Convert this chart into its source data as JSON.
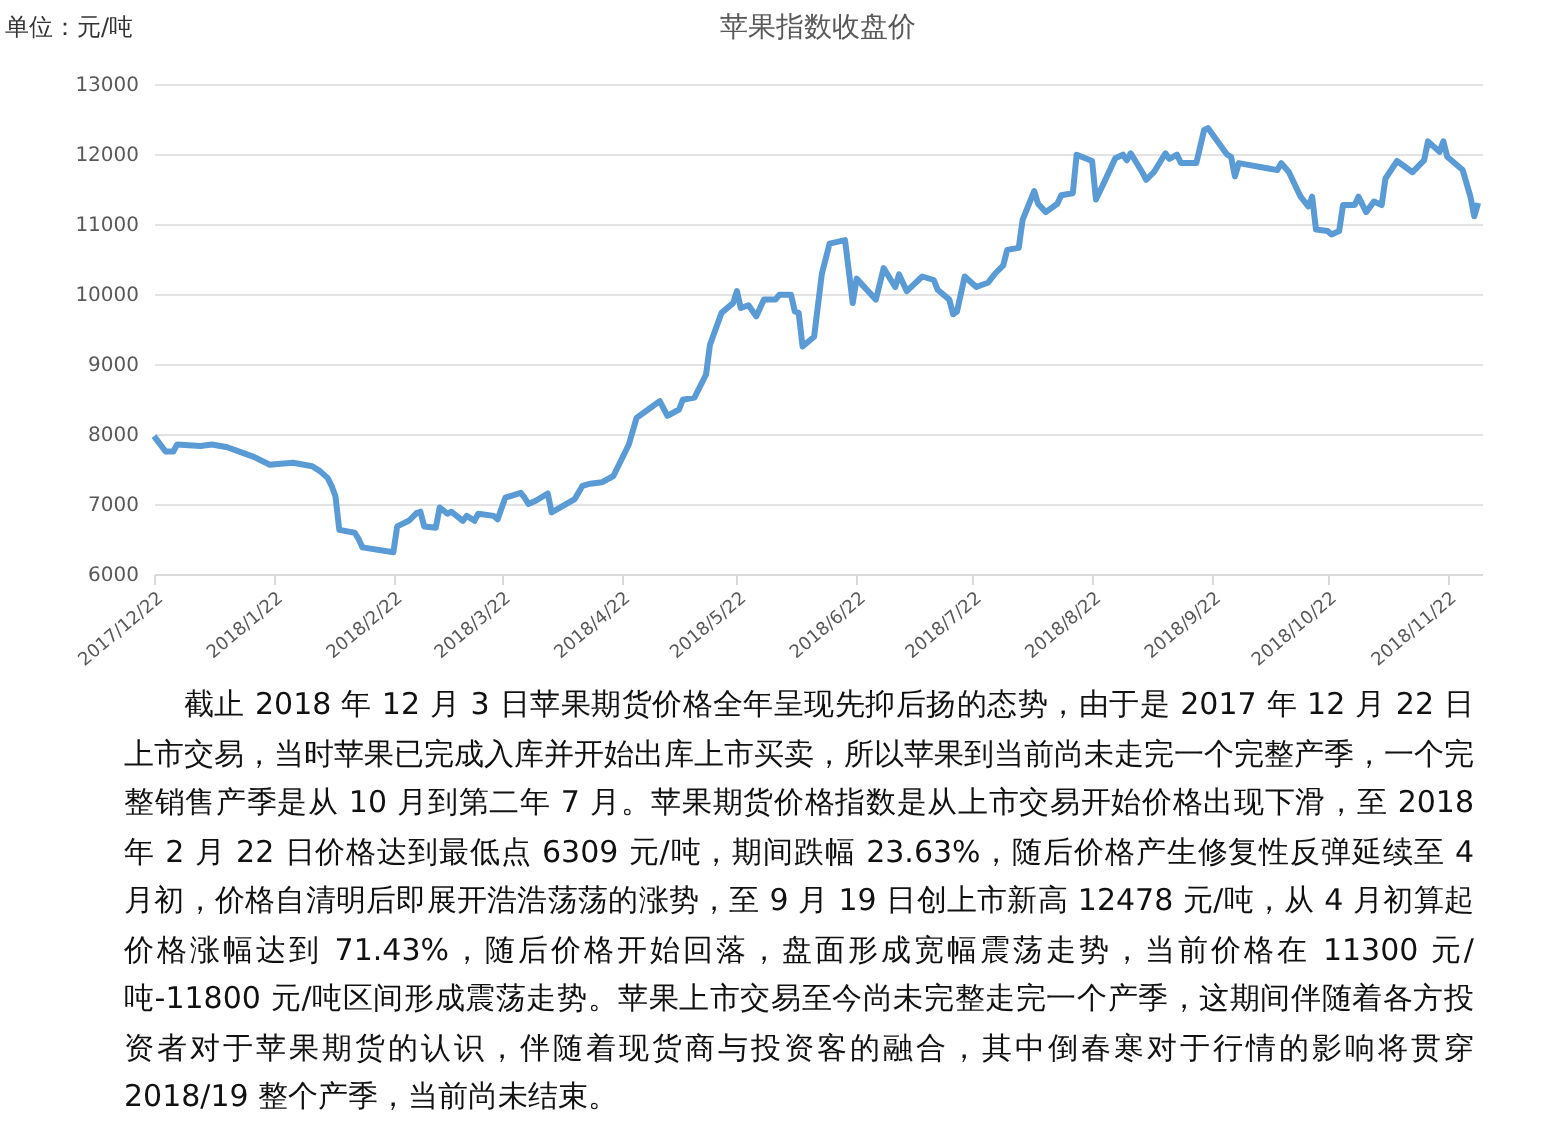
{
  "chart_data": {
    "type": "line",
    "title": "苹果指数收盘价",
    "ylabel": "单位：元/吨",
    "x": [
      "2017-12-22",
      "2017-12-25",
      "2017-12-27",
      "2017-12-28",
      "2018-01-03",
      "2018-01-06",
      "2018-01-10",
      "2018-01-14",
      "2018-01-17",
      "2018-01-21",
      "2018-01-23",
      "2018-01-27",
      "2018-02-01",
      "2018-02-03",
      "2018-02-05",
      "2018-02-06",
      "2018-02-07",
      "2018-02-08",
      "2018-02-12",
      "2018-02-13",
      "2018-02-14",
      "2018-02-22",
      "2018-02-23",
      "2018-02-26",
      "2018-02-28",
      "2018-03-01",
      "2018-03-02",
      "2018-03-05",
      "2018-03-06",
      "2018-03-08",
      "2018-03-09",
      "2018-03-12",
      "2018-03-13",
      "2018-03-15",
      "2018-03-16",
      "2018-03-20",
      "2018-03-21",
      "2018-03-23",
      "2018-03-27",
      "2018-03-28",
      "2018-03-29",
      "2018-03-31",
      "2018-04-03",
      "2018-04-04",
      "2018-04-10",
      "2018-04-12",
      "2018-04-14",
      "2018-04-17",
      "2018-04-20",
      "2018-04-24",
      "2018-04-26",
      "2018-04-29",
      "2018-05-02",
      "2018-05-04",
      "2018-05-07",
      "2018-05-08",
      "2018-05-11",
      "2018-05-14",
      "2018-05-15",
      "2018-05-18",
      "2018-05-21",
      "2018-05-22",
      "2018-05-23",
      "2018-05-25",
      "2018-05-27",
      "2018-05-29",
      "2018-06-01",
      "2018-06-02",
      "2018-06-05",
      "2018-06-06",
      "2018-06-07",
      "2018-06-08",
      "2018-06-11",
      "2018-06-13",
      "2018-06-15",
      "2018-06-19",
      "2018-06-21",
      "2018-06-22",
      "2018-06-27",
      "2018-06-29",
      "2018-07-02",
      "2018-07-03",
      "2018-07-05",
      "2018-07-09",
      "2018-07-12",
      "2018-07-13",
      "2018-07-16",
      "2018-07-17",
      "2018-07-18",
      "2018-07-20",
      "2018-07-23",
      "2018-07-26",
      "2018-07-28",
      "2018-07-30",
      "2018-07-31",
      "2018-08-03",
      "2018-08-04",
      "2018-08-07",
      "2018-08-08",
      "2018-08-10",
      "2018-08-13",
      "2018-08-14",
      "2018-08-17",
      "2018-08-18",
      "2018-08-22",
      "2018-08-23",
      "2018-08-25",
      "2018-08-28",
      "2018-08-30",
      "2018-08-31",
      "2018-09-01",
      "2018-09-04",
      "2018-09-05",
      "2018-09-07",
      "2018-09-10",
      "2018-09-11",
      "2018-09-13",
      "2018-09-14",
      "2018-09-18",
      "2018-09-20",
      "2018-09-21",
      "2018-09-26",
      "2018-09-27",
      "2018-09-28",
      "2018-09-29",
      "2018-10-09",
      "2018-10-10",
      "2018-10-12",
      "2018-10-15",
      "2018-10-17",
      "2018-10-18",
      "2018-10-19",
      "2018-10-22",
      "2018-10-23",
      "2018-10-25",
      "2018-10-26",
      "2018-10-29",
      "2018-10-30",
      "2018-11-01",
      "2018-11-03",
      "2018-11-05",
      "2018-11-06",
      "2018-11-09",
      "2018-11-13",
      "2018-11-16",
      "2018-11-17",
      "2018-11-20",
      "2018-11-21",
      "2018-11-22",
      "2018-11-26",
      "2018-11-28",
      "2018-11-29",
      "2018-11-30"
    ],
    "series": [
      {
        "color": "#5b9bd5",
        "values": [
          7970,
          7750,
          7750,
          7850,
          7830,
          7850,
          7810,
          7730,
          7670,
          7560,
          7570,
          7590,
          7540,
          7470,
          7370,
          7260,
          7110,
          6630,
          6590,
          6500,
          6380,
          6310,
          6680,
          6760,
          6870,
          6890,
          6680,
          6660,
          6950,
          6860,
          6890,
          6760,
          6830,
          6760,
          6860,
          6830,
          6780,
          7090,
          7160,
          7090,
          7000,
          7050,
          7150,
          6880,
          7070,
          7260,
          7290,
          7310,
          7400,
          7850,
          8230,
          8350,
          8470,
          8260,
          8350,
          8490,
          8520,
          8850,
          9270,
          9730,
          9870,
          10040,
          9800,
          9840,
          9680,
          9920,
          9920,
          9990,
          9990,
          9750,
          9730,
          9250,
          9390,
          10290,
          10720,
          10770,
          9870,
          10220,
          9920,
          10370,
          10100,
          10280,
          10040,
          10250,
          10200,
          10060,
          9920,
          9710,
          9750,
          10250,
          10100,
          10160,
          10300,
          10410,
          10630,
          10660,
          11060,
          11470,
          11290,
          11170,
          11290,
          11410,
          11440,
          11990,
          11900,
          11350,
          11580,
          11940,
          11990,
          11910,
          12010,
          11740,
          11630,
          11740,
          12010,
          11930,
          11990,
          11870,
          11870,
          12340,
          12370,
          11990,
          11960,
          11680,
          11870,
          11770,
          11870,
          11740,
          11390,
          11250,
          11390,
          10920,
          10900,
          10850,
          10900,
          11270,
          11270,
          11390,
          11170,
          11320,
          11270,
          11650,
          11900,
          11740,
          11910,
          12180,
          12030,
          12180,
          11960,
          11770,
          11390,
          11110,
          11300
        ]
      }
    ],
    "xlim": [
      "2017-12-22",
      "2018-12-01"
    ],
    "xticks": [
      {
        "value": "2017-12-22",
        "label": "2017/12/22"
      },
      {
        "value": "2018-01-22",
        "label": "2018/1/22"
      },
      {
        "value": "2018-02-22",
        "label": "2018/2/22"
      },
      {
        "value": "2018-03-22",
        "label": "2018/3/22"
      },
      {
        "value": "2018-04-22",
        "label": "2018/4/22"
      },
      {
        "value": "2018-05-22",
        "label": "2018/5/22"
      },
      {
        "value": "2018-06-22",
        "label": "2018/6/22"
      },
      {
        "value": "2018-07-22",
        "label": "2018/7/22"
      },
      {
        "value": "2018-08-22",
        "label": "2018/8/22"
      },
      {
        "value": "2018-09-22",
        "label": "2018/9/22"
      },
      {
        "value": "2018-10-22",
        "label": "2018/10/22"
      },
      {
        "value": "2018-11-22",
        "label": "2018/11/22"
      }
    ],
    "ylim": [
      6000,
      13000
    ],
    "yticks": [
      6000,
      7000,
      8000,
      9000,
      10000,
      11000,
      12000,
      13000
    ],
    "grid": "y",
    "annotations": [
      "截止 2018 年 12 月 3 日苹果期货价格全年呈现先抑后扬的态势，由于是 2017 年 12 月 22 日上市交易，当时苹果已完成入库并开始出库上市买卖，所以苹果到当前尚未走完一个完整产季，一个完整销售产季是从 10 月到第二年 7 月。苹果期货价格指数是从上市交易开始价格出现下滑，至 2018 年 2 月 22 日价格达到最低点 6309 元/吨，期间跌幅 23.63%，随后价格产生修复性反弹延续至 4 月初，价格自清明后即展开浩浩荡荡的涨势，至 9 月 19 日创上市新高 12478 元/吨，从 4 月初算起价格涨幅达到 71.43%，随后价格开始回落，盘面形成宽幅震荡走势，当前价格在 11300 元/吨-11800 元/吨区间形成震荡走势。苹果上市交易至今尚未完整走完一个产季，这期间伴随着各方投资者对于苹果期货的认识，伴随着现货商与投资客的融合，其中倒春寒对于行情的影响将贯穿 2018/19 整个产季，当前尚未结束。"
    ]
  }
}
